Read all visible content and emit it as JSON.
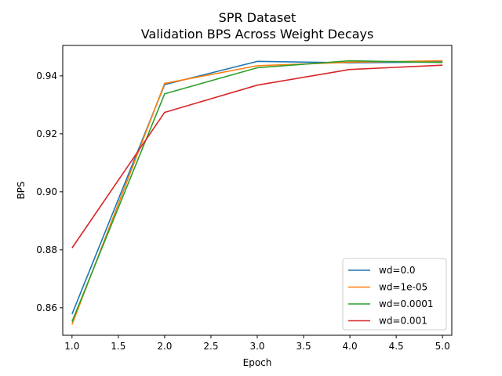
{
  "chart_data": {
    "type": "line",
    "title": "SPR Dataset",
    "subtitle": "Validation BPS Across Weight Decays",
    "xlabel": "Epoch",
    "ylabel": "BPS",
    "xlim": [
      0.9,
      5.1
    ],
    "ylim": [
      0.8505,
      0.9505
    ],
    "xticks": [
      "1.0",
      "1.5",
      "2.0",
      "2.5",
      "3.0",
      "3.5",
      "4.0",
      "4.5",
      "5.0"
    ],
    "yticks": [
      "0.86",
      "0.88",
      "0.90",
      "0.92",
      "0.94"
    ],
    "grid": false,
    "legend_position": "lower-right",
    "x": [
      1,
      2,
      3,
      4,
      5
    ],
    "series": [
      {
        "name": "wd=0.0",
        "color": "#1f77b4",
        "values": [
          0.8578,
          0.937,
          0.945,
          0.9445,
          0.9448
        ]
      },
      {
        "name": "wd=1e-05",
        "color": "#ff7f0e",
        "values": [
          0.8542,
          0.9374,
          0.9435,
          0.9447,
          0.9452
        ]
      },
      {
        "name": "wd=0.0001",
        "color": "#2ca02c",
        "values": [
          0.8552,
          0.9338,
          0.9428,
          0.9452,
          0.9446
        ]
      },
      {
        "name": "wd=0.001",
        "color": "#d62728",
        "values": [
          0.8806,
          0.9274,
          0.9368,
          0.9422,
          0.9437
        ]
      }
    ]
  }
}
